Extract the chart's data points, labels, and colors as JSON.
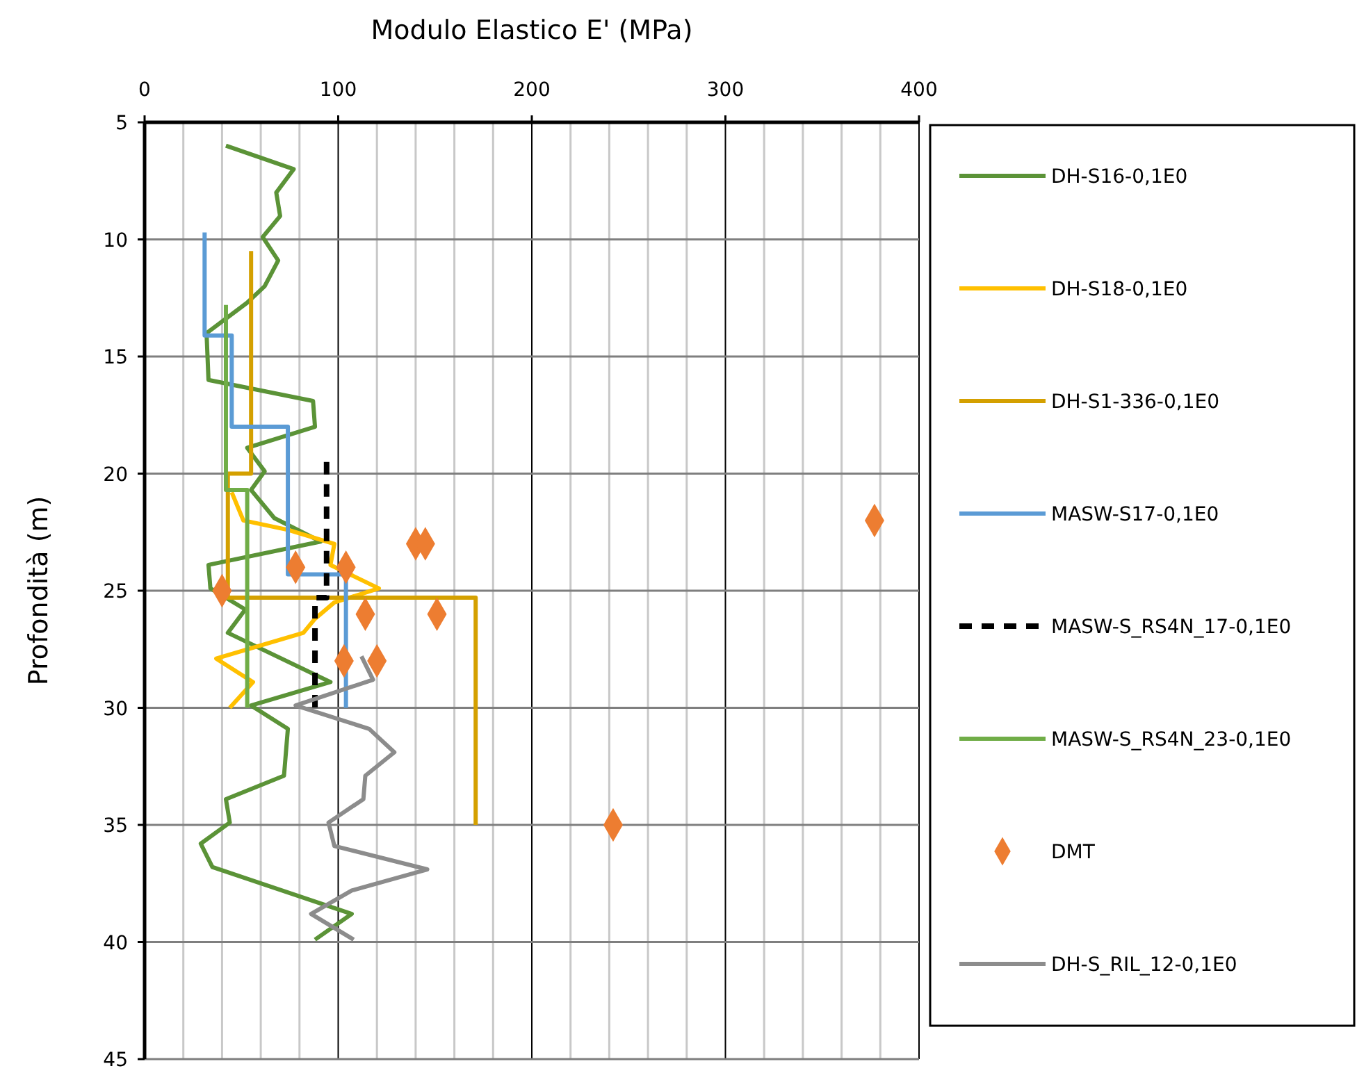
{
  "chart_data": {
    "type": "line",
    "xlabel": "Modulo Elastico E' (MPa)",
    "ylabel": "Profondità (m)",
    "xlim": [
      0,
      400
    ],
    "xticks": [
      0,
      {
        "value": 20,
        "label": null
      },
      {
        "value": 40,
        "label": null
      },
      {
        "value": 60,
        "label": null
      },
      {
        "value": 80,
        "label": null
      },
      100,
      {
        "value": 120,
        "label": null
      },
      {
        "value": 140,
        "label": null
      },
      {
        "value": 160,
        "label": null
      },
      {
        "value": 180,
        "label": null
      },
      200,
      {
        "value": 220,
        "label": null
      },
      {
        "value": 240,
        "label": null
      },
      {
        "value": 260,
        "label": null
      },
      {
        "value": 280,
        "label": null
      },
      300,
      {
        "value": 320,
        "label": null
      },
      {
        "value": 340,
        "label": null
      },
      {
        "value": 360,
        "label": null
      },
      {
        "value": 380,
        "label": null
      },
      400
    ],
    "ylim": [
      45,
      5
    ],
    "yticks": [
      5,
      10,
      15,
      20,
      25,
      30,
      35,
      40,
      45
    ],
    "grid": true,
    "legend": "right",
    "series": [
      {
        "name": "DH-S16-0,1E0",
        "color": "#5b9337",
        "x": [
          42,
          77,
          68,
          70,
          61,
          69,
          62,
          53,
          32,
          33,
          87,
          88,
          53,
          62,
          55,
          67,
          91,
          33,
          34,
          52,
          43,
          96,
          55,
          74,
          72,
          42,
          44,
          29,
          35,
          107,
          88
        ],
        "values": [
          6,
          7,
          8,
          9,
          9.9,
          10.9,
          12,
          12.7,
          14,
          16,
          16.9,
          18,
          18.9,
          19.9,
          20.7,
          21.9,
          22.9,
          23.9,
          24.9,
          25.8,
          26.8,
          28.9,
          29.9,
          30.9,
          32.9,
          33.9,
          34.9,
          35.8,
          36.8,
          38.8,
          39.9
        ]
      },
      {
        "name": "DH-S18-0,1E0",
        "color": "#ffc000",
        "x": [
          45,
          51,
          74,
          98,
          96,
          121,
          98,
          88,
          82,
          37,
          56,
          44
        ],
        "values": [
          20.8,
          22,
          22.4,
          23,
          23.9,
          24.9,
          25.5,
          26.2,
          26.8,
          27.9,
          28.9,
          30
        ]
      },
      {
        "name": "DH-S1-336-0,1E0",
        "color": "#d4a000",
        "x": [
          55,
          55,
          43,
          43,
          171,
          171
        ],
        "values": [
          10.5,
          20,
          20,
          25.3,
          25.3,
          35
        ]
      },
      {
        "name": "MASW-S17-0,1E0",
        "color": "#5b9bd5",
        "x": [
          31,
          31,
          45,
          45,
          74,
          74,
          104,
          104
        ],
        "values": [
          9.7,
          14.1,
          14.1,
          18,
          18,
          24.3,
          24.3,
          30
        ]
      },
      {
        "name": "MASW-S_RS4N_17-0,1E0",
        "color": "#000000",
        "line_style": "dashed",
        "x": [
          94,
          94,
          88,
          88
        ],
        "values": [
          19.5,
          25.3,
          25.3,
          30
        ]
      },
      {
        "name": "MASW-S_RS4N_23-0,1E0",
        "color": "#70ad47",
        "x": [
          42,
          42,
          53,
          53
        ],
        "values": [
          12.8,
          20.7,
          20.7,
          30
        ]
      },
      {
        "name": "DMT",
        "type": "scatter",
        "marker": "diamond",
        "color": "#ed7d31",
        "x": [
          377,
          140,
          145,
          78,
          104,
          40,
          114,
          151,
          103,
          120,
          242
        ],
        "values": [
          22,
          23,
          23,
          24,
          24,
          25,
          26,
          26,
          28,
          28,
          35
        ]
      },
      {
        "name": "DH-S_RIL_12-0,1E0",
        "color": "#8c8c8c",
        "x": [
          112,
          118,
          78,
          116,
          129,
          114,
          113,
          95,
          98,
          146,
          107,
          86,
          108
        ],
        "values": [
          27.8,
          28.8,
          29.9,
          30.9,
          31.9,
          32.9,
          33.9,
          34.9,
          35.9,
          36.9,
          37.8,
          38.8,
          39.9
        ]
      }
    ]
  }
}
